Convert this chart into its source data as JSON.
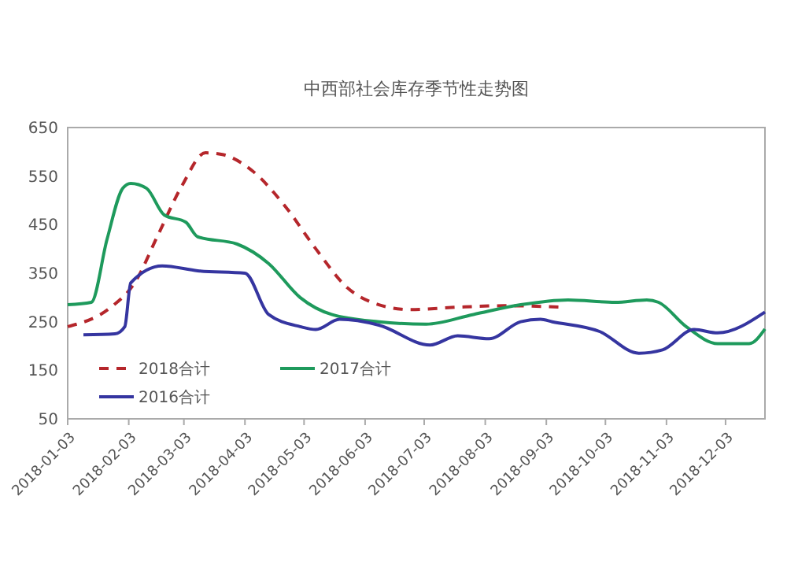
{
  "chart_data": {
    "type": "line",
    "title": "中西部社会库存季节性走势图",
    "xlim": [
      "2018-01-03",
      "2018-12-23"
    ],
    "xticks": [
      "2018-01-03",
      "2018-02-03",
      "2018-03-03",
      "2018-04-03",
      "2018-05-03",
      "2018-06-03",
      "2018-07-03",
      "2018-08-03",
      "2018-09-03",
      "2018-10-03",
      "2018-11-03",
      "2018-12-03"
    ],
    "ylim": [
      50,
      650
    ],
    "yticks": [
      50,
      150,
      250,
      350,
      450,
      550,
      650
    ],
    "grid": false,
    "legend": "bottom left",
    "marker": "none",
    "series": [
      {
        "name": "2018合计",
        "color": "#b5262b",
        "line_style": "dashed",
        "x": [
          "2018-01-03",
          "2018-01-25",
          "2018-02-06",
          "2018-02-18",
          "2018-03-02",
          "2018-03-14",
          "2018-03-22",
          "2018-04-07",
          "2018-04-23",
          "2018-05-09",
          "2018-05-25",
          "2018-06-10",
          "2018-06-26",
          "2018-07-20",
          "2018-08-13",
          "2018-09-10"
        ],
        "values": [
          240,
          280,
          330,
          430,
          530,
          598,
          595,
          560,
          490,
          400,
          320,
          285,
          275,
          280,
          283,
          280
        ]
      },
      {
        "name": "2017合计",
        "color": "#1e9a5c",
        "line_style": "solid",
        "x": [
          "2018-01-03",
          "2018-01-15",
          "2018-01-23",
          "2018-01-31",
          "2018-02-04",
          "2018-02-12",
          "2018-02-21",
          "2018-03-04",
          "2018-03-10",
          "2018-03-30",
          "2018-04-15",
          "2018-05-01",
          "2018-05-17",
          "2018-06-10",
          "2018-07-04",
          "2018-07-28",
          "2018-08-21",
          "2018-09-14",
          "2018-10-08",
          "2018-10-24",
          "2018-10-30",
          "2018-11-13",
          "2018-11-29",
          "2018-12-15",
          "2018-12-23"
        ],
        "values": [
          285,
          290,
          420,
          525,
          535,
          525,
          470,
          455,
          425,
          410,
          370,
          300,
          265,
          250,
          245,
          265,
          285,
          295,
          290,
          295,
          290,
          240,
          205,
          205,
          235
        ]
      },
      {
        "name": "2016合计",
        "color": "#3535a0",
        "line_style": "solid",
        "x": [
          "2018-01-11",
          "2018-01-27",
          "2018-02-01",
          "2018-02-04",
          "2018-02-20",
          "2018-03-10",
          "2018-04-03",
          "2018-04-15",
          "2018-05-01",
          "2018-05-09",
          "2018-05-21",
          "2018-06-10",
          "2018-07-06",
          "2018-07-20",
          "2018-08-05",
          "2018-08-21",
          "2018-08-31",
          "2018-09-06",
          "2018-09-30",
          "2018-10-20",
          "2018-11-01",
          "2018-11-17",
          "2018-11-29",
          "2018-12-23"
        ],
        "values": [
          223,
          225,
          240,
          330,
          365,
          355,
          350,
          265,
          240,
          234,
          255,
          243,
          202,
          221,
          215,
          250,
          255,
          250,
          230,
          185,
          192,
          234,
          227,
          270
        ]
      }
    ]
  }
}
